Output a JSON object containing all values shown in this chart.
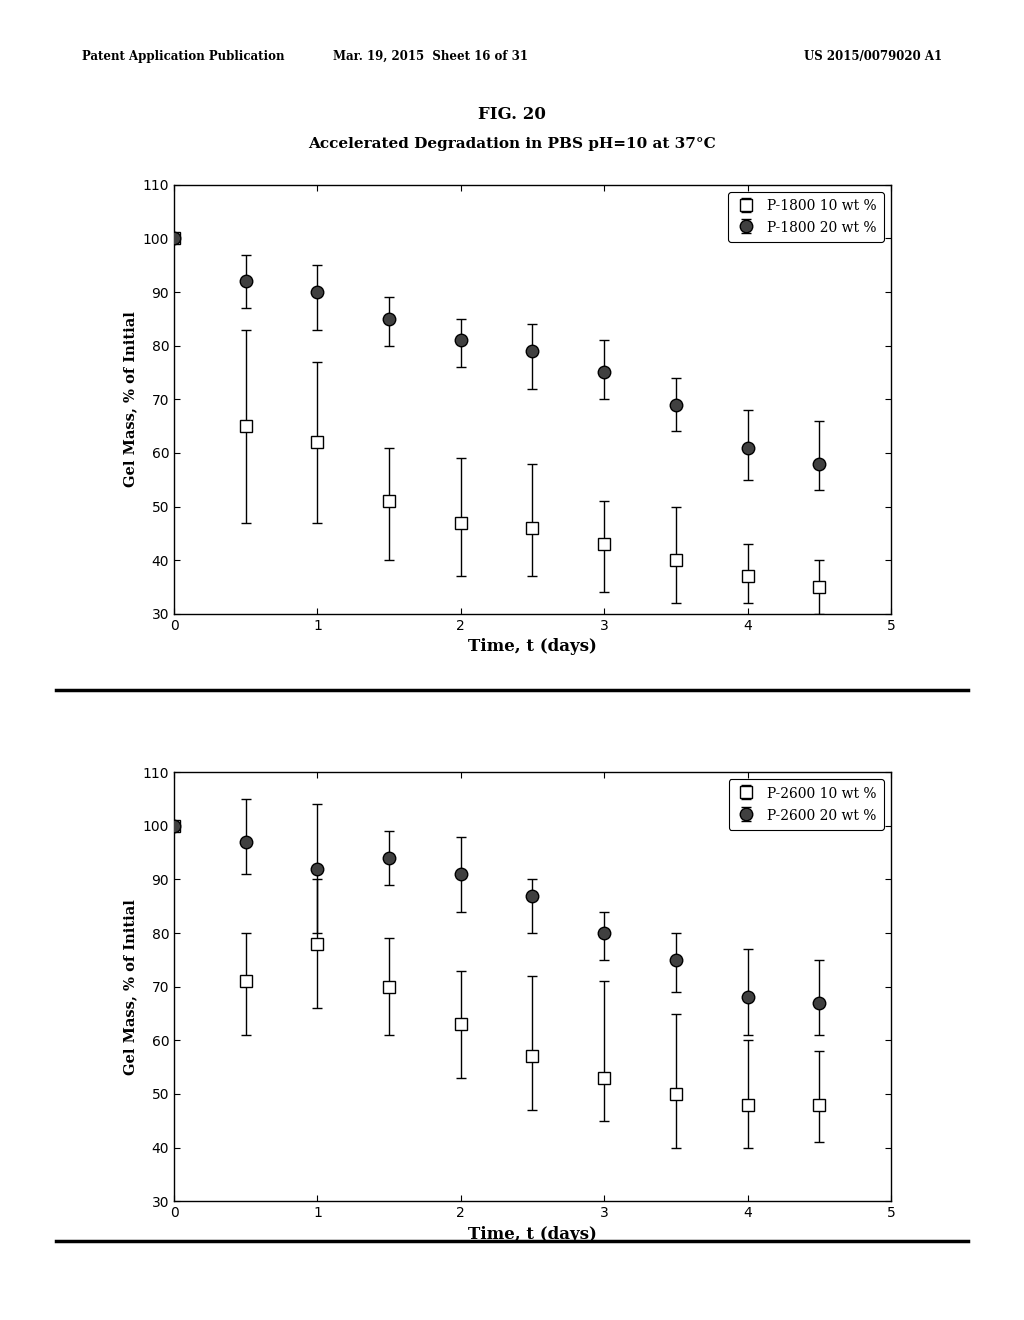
{
  "fig_label": "FIG. 20",
  "main_title": "Accelerated Degradation in PBS pH=10 at 37°C",
  "header_left": "Patent Application Publication",
  "header_mid": "Mar. 19, 2015  Sheet 16 of 31",
  "header_right": "US 2015/0079020 A1",
  "background_color": "#ffffff",
  "plot1": {
    "xlabel": "Time, t (days)",
    "ylabel": "Gel Mass, % of Initial",
    "xlim": [
      0,
      5
    ],
    "ylim": [
      30,
      110
    ],
    "yticks": [
      30,
      40,
      50,
      60,
      70,
      80,
      90,
      100,
      110
    ],
    "xticks": [
      0,
      1,
      2,
      3,
      4,
      5
    ],
    "legend_labels": [
      "P-1800 10 wt %",
      "P-1800 20 wt %"
    ],
    "series_open": {
      "x": [
        0,
        0.5,
        1.0,
        1.5,
        2.0,
        2.5,
        3.0,
        3.5,
        4.0,
        4.5
      ],
      "y": [
        100,
        65,
        62,
        51,
        47,
        46,
        43,
        40,
        37,
        35
      ],
      "yerr_lo": [
        0,
        18,
        15,
        11,
        10,
        9,
        9,
        8,
        5,
        5
      ],
      "yerr_hi": [
        0,
        18,
        15,
        10,
        12,
        12,
        8,
        10,
        6,
        5
      ]
    },
    "series_filled": {
      "x": [
        0,
        0.5,
        1.0,
        1.5,
        2.0,
        2.5,
        3.0,
        3.5,
        4.0,
        4.5
      ],
      "y": [
        100,
        92,
        90,
        85,
        81,
        79,
        75,
        69,
        61,
        58
      ],
      "yerr_lo": [
        0,
        5,
        7,
        5,
        5,
        7,
        5,
        5,
        6,
        5
      ],
      "yerr_hi": [
        0,
        5,
        5,
        4,
        4,
        5,
        6,
        5,
        7,
        8
      ]
    }
  },
  "plot2": {
    "xlabel": "Time, t (days)",
    "ylabel": "Gel Mass, % of Initial",
    "xlim": [
      0,
      5
    ],
    "ylim": [
      30,
      110
    ],
    "yticks": [
      30,
      40,
      50,
      60,
      70,
      80,
      90,
      100,
      110
    ],
    "xticks": [
      0,
      1,
      2,
      3,
      4,
      5
    ],
    "legend_labels": [
      "P-2600 10 wt %",
      "P-2600 20 wt %"
    ],
    "series_open": {
      "x": [
        0,
        0.5,
        1.0,
        1.5,
        2.0,
        2.5,
        3.0,
        3.5,
        4.0,
        4.5
      ],
      "y": [
        100,
        71,
        78,
        70,
        63,
        57,
        53,
        50,
        48,
        48
      ],
      "yerr_lo": [
        0,
        10,
        12,
        9,
        10,
        10,
        8,
        10,
        8,
        7
      ],
      "yerr_hi": [
        0,
        9,
        12,
        9,
        10,
        15,
        18,
        15,
        12,
        10
      ]
    },
    "series_filled": {
      "x": [
        0,
        0.5,
        1.0,
        1.5,
        2.0,
        2.5,
        3.0,
        3.5,
        4.0,
        4.5
      ],
      "y": [
        100,
        97,
        92,
        94,
        91,
        87,
        80,
        75,
        68,
        67
      ],
      "yerr_lo": [
        0,
        6,
        12,
        5,
        7,
        7,
        5,
        6,
        7,
        6
      ],
      "yerr_hi": [
        0,
        8,
        12,
        5,
        7,
        3,
        4,
        5,
        9,
        8
      ]
    }
  }
}
